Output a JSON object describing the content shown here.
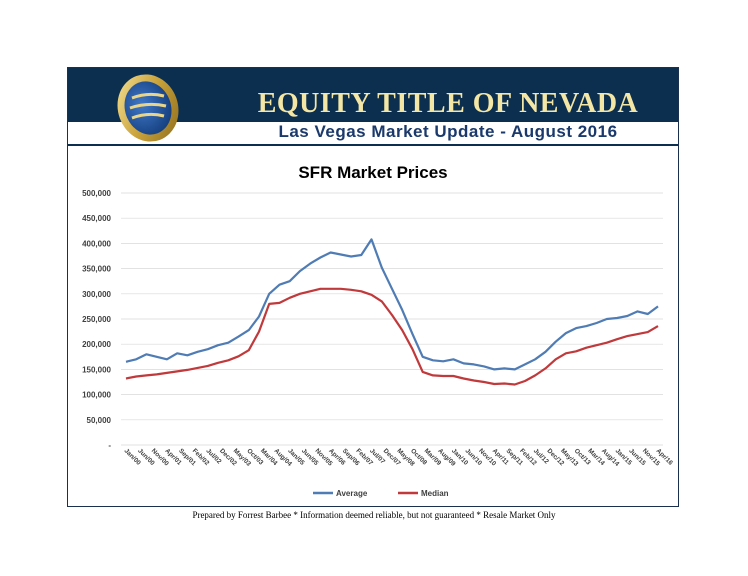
{
  "header": {
    "title": "EQUITY TITLE OF NEVADA",
    "subtitle": "Las Vegas Market Update - August 2016"
  },
  "footer": {
    "note": "Prepared by Forrest Barbee * Information deemed reliable, but not guaranteed * Resale Market Only"
  },
  "colors": {
    "average": "#4f7cb4",
    "median": "#c0393b",
    "banner": "#0d2f4f",
    "title_text": "#f4e7a6"
  },
  "chart_data": {
    "type": "line",
    "title": "SFR Market Prices",
    "xlabel": "",
    "ylabel": "",
    "ylim": [
      0,
      500000
    ],
    "ytick_values": [
      0,
      50000,
      100000,
      150000,
      200000,
      250000,
      300000,
      350000,
      400000,
      450000,
      500000
    ],
    "ytick_labels": [
      "-",
      "50,000",
      "100,000",
      "150,000",
      "200,000",
      "250,000",
      "300,000",
      "350,000",
      "400,000",
      "450,000",
      "500,000"
    ],
    "x_tick_labels": [
      "Jan/00",
      "Jun/00",
      "Nov/00",
      "Apr/01",
      "Sep/01",
      "Feb/02",
      "Jul/02",
      "Dec/02",
      "May/03",
      "Oct/03",
      "Mar/04",
      "Aug/04",
      "Jan/05",
      "Jun/05",
      "Nov/05",
      "Apr/06",
      "Sep/06",
      "Feb/07",
      "Jul/07",
      "Dec/07",
      "May/08",
      "Oct/08",
      "Mar/09",
      "Aug/09",
      "Jan/10",
      "Jun/10",
      "Nov/10",
      "Apr/11",
      "Sep/11",
      "Feb/12",
      "Jul/12",
      "Dec/12",
      "May/13",
      "Oct/13",
      "Mar/14",
      "Aug/14",
      "Jan/15",
      "Jun/15",
      "Nov/15",
      "Apr/16"
    ],
    "legend": "bottom-center",
    "series": [
      {
        "name": "Average",
        "values": [
          165000,
          170000,
          180000,
          175000,
          170000,
          182000,
          178000,
          185000,
          190000,
          198000,
          203000,
          215000,
          228000,
          255000,
          300000,
          318000,
          325000,
          345000,
          360000,
          372000,
          382000,
          378000,
          374000,
          377000,
          408000,
          352000,
          310000,
          268000,
          220000,
          175000,
          168000,
          166000,
          170000,
          162000,
          160000,
          156000,
          150000,
          152000,
          150000,
          160000,
          170000,
          185000,
          205000,
          222000,
          232000,
          236000,
          242000,
          250000,
          252000,
          256000,
          265000,
          260000,
          275000
        ]
      },
      {
        "name": "Median",
        "values": [
          132000,
          136000,
          138000,
          140000,
          143000,
          146000,
          149000,
          153000,
          157000,
          163000,
          168000,
          176000,
          188000,
          225000,
          280000,
          282000,
          292000,
          300000,
          305000,
          310000,
          310000,
          310000,
          308000,
          305000,
          298000,
          285000,
          258000,
          228000,
          190000,
          145000,
          138000,
          137000,
          137000,
          132000,
          128000,
          125000,
          121000,
          122000,
          120000,
          127000,
          138000,
          152000,
          170000,
          182000,
          186000,
          193000,
          198000,
          203000,
          210000,
          216000,
          220000,
          224000,
          236000
        ]
      }
    ]
  }
}
